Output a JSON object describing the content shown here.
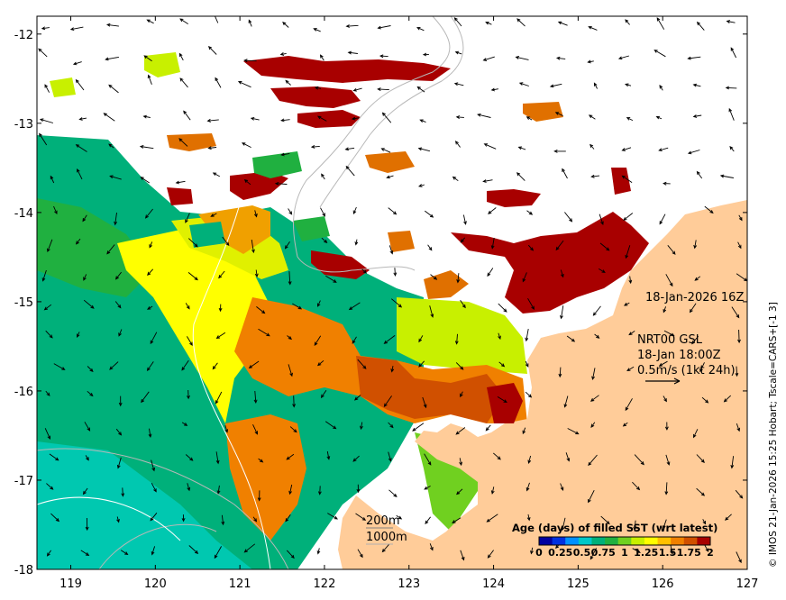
{
  "map": {
    "lon_range": [
      118.6,
      127.0
    ],
    "lat_range": [
      -18.0,
      -11.8
    ],
    "x_ticks": [
      "119",
      "120",
      "121",
      "122",
      "123",
      "124",
      "125",
      "126",
      "127"
    ],
    "y_ticks": [
      "-12",
      "-13",
      "-14",
      "-15",
      "-16",
      "-17",
      "-18"
    ],
    "x_tick_values": [
      119,
      120,
      121,
      122,
      123,
      124,
      125,
      126,
      127
    ],
    "y_tick_values": [
      -12,
      -13,
      -14,
      -15,
      -16,
      -17,
      -18
    ],
    "land_color": "#ffcc99",
    "no_data_color": "#ffffff"
  },
  "annotations": {
    "sst_time": "18-Jan-2026 16Z",
    "current_product": "NRT00 GSL",
    "current_time": "18-Jan 18:00Z",
    "current_scale": "0.5m/s (1kt 24h)",
    "contour_200": "200m",
    "contour_1000": "1000m"
  },
  "colorbar": {
    "title": "Age (days) of filled SST (wrt latest)",
    "tick_labels": [
      "0",
      "0.25",
      "0.5",
      "0.75",
      "1",
      "1.25",
      "1.5",
      "1.75",
      "2"
    ],
    "tick_values": [
      0,
      0.25,
      0.5,
      0.75,
      1,
      1.25,
      1.5,
      1.75,
      2
    ],
    "colors": [
      "#0000a0",
      "#0030e0",
      "#0090ff",
      "#00c8c8",
      "#00b07a",
      "#20b040",
      "#70d020",
      "#c8f000",
      "#ffff00",
      "#ffc000",
      "#f08000",
      "#d05000",
      "#a80000"
    ]
  },
  "credit": "© IMOS 21-Jan-2026 15:25 Hobart; Tscale=CARS+[-1 3]"
}
